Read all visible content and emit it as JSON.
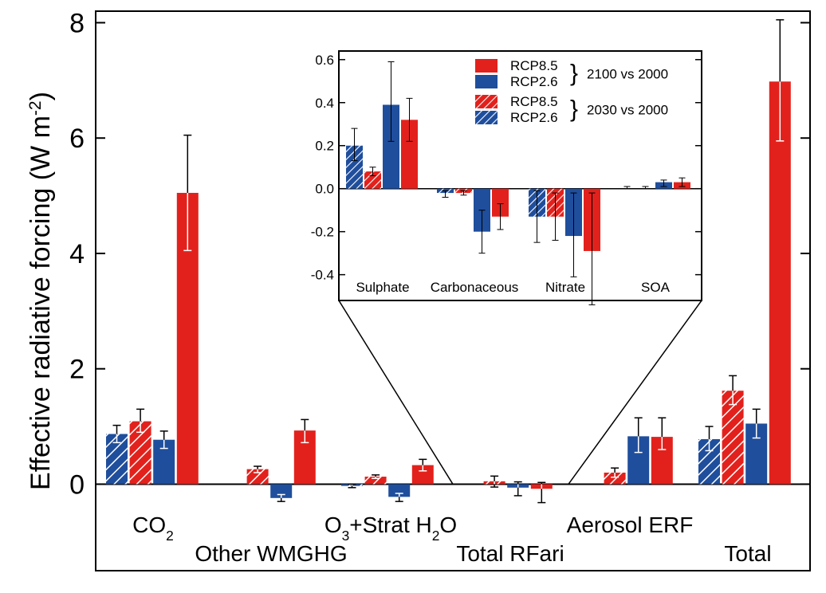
{
  "colors": {
    "red": "#e3211c",
    "blue": "#1f4e9c",
    "hatch_stroke": "#ffffff",
    "error_bar": "#000000",
    "error_bar_on_bar": "#ffffff"
  },
  "chart_data": [
    {
      "type": "bar",
      "ylabel_main": "Effective radiative forcing (W m",
      "ylabel_sup": "-2",
      "ylabel_end": ")",
      "ylim": [
        -1.5,
        8.2
      ],
      "yticks": [
        0,
        2,
        4,
        6,
        8
      ],
      "ytick_labels": [
        "0",
        "2",
        "4",
        "6",
        "8"
      ],
      "category_label_parts": [
        {
          "base": "CO",
          "sub": "2",
          "rest": ""
        },
        {
          "base": "Other WMGHG",
          "sub": "",
          "rest": ""
        },
        {
          "base": "O",
          "sub": "3",
          "rest": "+Strat H",
          "sub2": "2",
          "rest2": "O"
        },
        {
          "base": "Total RFari",
          "sub": "",
          "rest": ""
        },
        {
          "base": "Aerosol ERF",
          "sub": "",
          "rest": ""
        },
        {
          "base": "Total",
          "sub": "",
          "rest": ""
        }
      ],
      "series_order": [
        "RCP2.6 2030 vs 2000",
        "RCP8.5 2030 vs 2000",
        "RCP2.6 2100 vs 2000",
        "RCP8.5 2100 vs 2000"
      ],
      "series_styles": [
        {
          "color": "blue",
          "hatched": true
        },
        {
          "color": "red",
          "hatched": true
        },
        {
          "color": "blue",
          "hatched": false
        },
        {
          "color": "red",
          "hatched": false
        }
      ],
      "values": [
        [
          0.87,
          1.09,
          0.77,
          5.05
        ],
        [
          0.0,
          0.26,
          -0.24,
          0.93
        ],
        [
          -0.03,
          0.13,
          -0.22,
          0.33
        ],
        [
          0.0,
          0.05,
          -0.06,
          -0.08
        ],
        [
          0.0,
          0.2,
          0.83,
          0.82
        ],
        [
          0.78,
          1.62,
          1.05,
          6.98
        ]
      ],
      "err_low": [
        [
          0.72,
          0.9,
          0.62,
          4.05
        ],
        [
          0.0,
          0.2,
          -0.3,
          0.72
        ],
        [
          -0.06,
          0.1,
          -0.3,
          0.23
        ],
        [
          0.0,
          -0.05,
          -0.2,
          -0.32
        ],
        [
          0.0,
          0.12,
          0.55,
          0.6
        ],
        [
          0.58,
          1.38,
          0.8,
          5.95
        ]
      ],
      "err_high": [
        [
          1.02,
          1.3,
          0.92,
          6.05
        ],
        [
          0.0,
          0.31,
          -0.18,
          1.12
        ],
        [
          0.0,
          0.16,
          -0.16,
          0.43
        ],
        [
          0.0,
          0.14,
          0.04,
          0.03
        ],
        [
          0.0,
          0.28,
          1.15,
          1.15
        ],
        [
          1.0,
          1.88,
          1.3,
          8.05
        ]
      ]
    },
    {
      "type": "bar",
      "inset": true,
      "ylim": [
        -0.52,
        0.64
      ],
      "yticks": [
        -0.4,
        -0.2,
        0.0,
        0.2,
        0.4,
        0.6
      ],
      "ytick_labels": [
        "-0.4",
        "-0.2",
        "0.0",
        "0.2",
        "0.4",
        "0.6"
      ],
      "categories": [
        "Sulphate",
        "Carbonaceous",
        "Nitrate",
        "SOA"
      ],
      "values": [
        [
          0.2,
          0.08,
          0.39,
          0.32
        ],
        [
          -0.02,
          -0.02,
          -0.2,
          -0.13
        ],
        [
          -0.13,
          -0.13,
          -0.22,
          -0.29
        ],
        [
          0.0,
          0.0,
          0.03,
          0.03
        ]
      ],
      "err_low": [
        [
          0.13,
          0.06,
          0.22,
          0.22
        ],
        [
          -0.04,
          -0.03,
          -0.3,
          -0.19
        ],
        [
          -0.25,
          -0.24,
          -0.41,
          -0.54
        ],
        [
          0.0,
          0.0,
          0.01,
          0.01
        ]
      ],
      "err_high": [
        [
          0.28,
          0.1,
          0.59,
          0.42
        ],
        [
          -0.01,
          -0.01,
          -0.1,
          -0.07
        ],
        [
          -0.01,
          -0.02,
          -0.02,
          -0.02
        ],
        [
          0.01,
          0.01,
          0.04,
          0.05
        ]
      ],
      "legend": {
        "entries": [
          {
            "label": "RCP8.5",
            "color": "red",
            "hatched": false
          },
          {
            "label": "RCP2.6",
            "color": "blue",
            "hatched": false
          },
          {
            "label": "RCP8.5",
            "color": "red",
            "hatched": true
          },
          {
            "label": "RCP2.6",
            "color": "blue",
            "hatched": true
          }
        ],
        "group_labels": [
          "2100 vs 2000",
          "2030 vs 2000"
        ]
      }
    }
  ]
}
